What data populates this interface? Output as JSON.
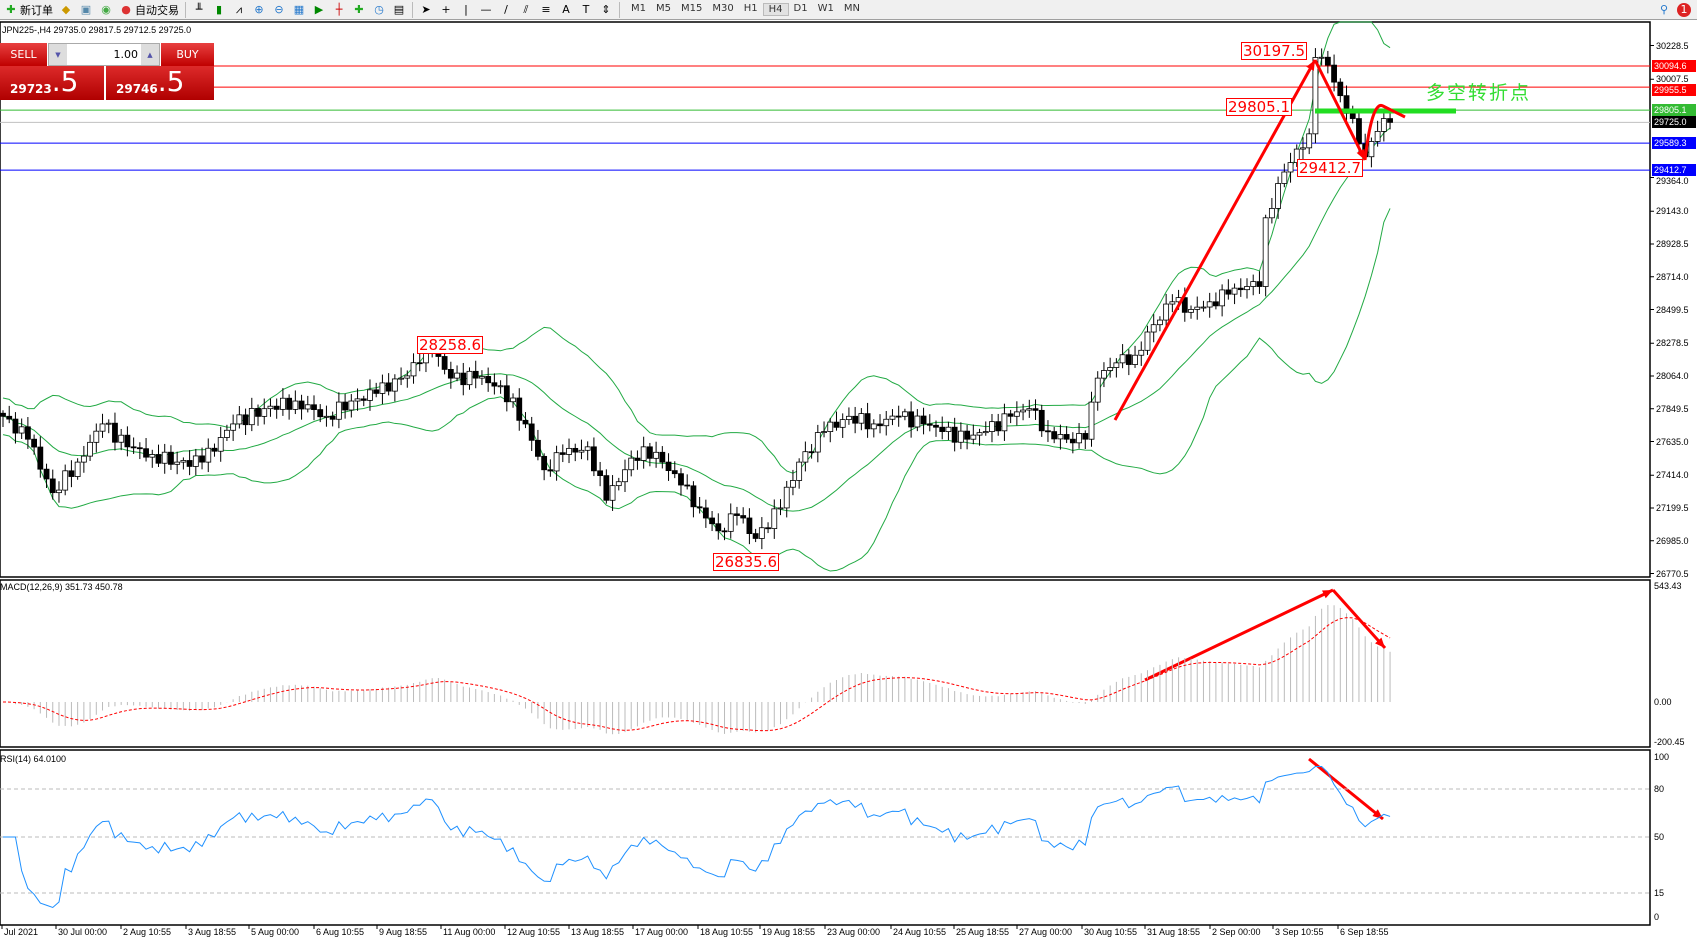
{
  "toolbar": {
    "new_order": "新订单",
    "auto_trading": "自动交易",
    "timeframes": [
      "M1",
      "M5",
      "M15",
      "M30",
      "H1",
      "H4",
      "D1",
      "W1",
      "MN"
    ],
    "active_timeframe": "H4",
    "notification_count": "1"
  },
  "chart": {
    "title": "JPN225-,H4  29735.0 29817.5 29712.5 29725.0"
  },
  "trade_panel": {
    "sell_label": "SELL",
    "buy_label": "BUY",
    "lots": "1.00",
    "sell_price_main": "29723",
    "sell_price_pip": ".5",
    "buy_price_main": "29746",
    "buy_price_pip": ".5"
  },
  "price_axis": {
    "ticks": [
      "30228.5",
      "30007.5",
      "29364.0",
      "29143.0",
      "28928.5",
      "28714.0",
      "28499.5",
      "28278.5",
      "28064.0",
      "27849.5",
      "27635.0",
      "27414.0",
      "27199.5",
      "26985.0",
      "26770.5"
    ]
  },
  "levels": [
    {
      "price": "30094.6",
      "color": "#ff0000"
    },
    {
      "price": "29955.5",
      "color": "#ff0000"
    },
    {
      "price": "29805.1",
      "color": "#33bb33"
    },
    {
      "price": "29725.0",
      "color": "#000000",
      "line": "#c0c0c0"
    },
    {
      "price": "29589.3",
      "color": "#0000ff"
    },
    {
      "price": "29412.7",
      "color": "#0000ff"
    }
  ],
  "price_labels": [
    "30197.5",
    "29805.1",
    "29412.7",
    "28258.6",
    "26835.6"
  ],
  "annotation_text": "多空转折点",
  "price_path": [
    [
      0,
      27800
    ],
    [
      4,
      27650
    ],
    [
      8,
      27300
    ],
    [
      12,
      27500
    ],
    [
      16,
      27750
    ],
    [
      20,
      27600
    ],
    [
      24,
      27550
    ],
    [
      28,
      27500
    ],
    [
      32,
      27500
    ],
    [
      37,
      27750
    ],
    [
      42,
      27850
    ],
    [
      47,
      27900
    ],
    [
      52,
      27800
    ],
    [
      56,
      27900
    ],
    [
      60,
      27950
    ],
    [
      64,
      28050
    ],
    [
      67,
      28150
    ],
    [
      69,
      28230
    ],
    [
      72,
      28050
    ],
    [
      76,
      28050
    ],
    [
      80,
      28000
    ],
    [
      84,
      27750
    ],
    [
      87,
      27450
    ],
    [
      90,
      27550
    ],
    [
      94,
      27600
    ],
    [
      97,
      27250
    ],
    [
      100,
      27450
    ],
    [
      103,
      27600
    ],
    [
      106,
      27500
    ],
    [
      109,
      27350
    ],
    [
      112,
      27200
    ],
    [
      115,
      27050
    ],
    [
      118,
      27150
    ],
    [
      121,
      27000
    ],
    [
      125,
      27200
    ],
    [
      128,
      27500
    ],
    [
      132,
      27700
    ],
    [
      136,
      27800
    ],
    [
      140,
      27750
    ],
    [
      144,
      27800
    ],
    [
      148,
      27750
    ],
    [
      151,
      27700
    ],
    [
      155,
      27650
    ],
    [
      158,
      27700
    ],
    [
      162,
      27800
    ],
    [
      165,
      27850
    ],
    [
      168,
      27700
    ],
    [
      171,
      27650
    ],
    [
      174,
      27650
    ],
    [
      176,
      28050
    ],
    [
      179,
      28150
    ],
    [
      182,
      28200
    ],
    [
      185,
      28400
    ],
    [
      188,
      28550
    ],
    [
      191,
      28500
    ],
    [
      194,
      28550
    ],
    [
      197,
      28600
    ],
    [
      200,
      28650
    ],
    [
      202,
      28650
    ],
    [
      203,
      29100
    ],
    [
      206,
      29400
    ],
    [
      208,
      29550
    ],
    [
      210,
      29650
    ],
    [
      211,
      30150
    ],
    [
      213,
      30100
    ],
    [
      215,
      29900
    ],
    [
      217,
      29750
    ],
    [
      219,
      29500
    ],
    [
      220,
      29600
    ],
    [
      222,
      29750
    ],
    [
      223,
      29725
    ]
  ],
  "macd": {
    "label": "MACD(12,26,9) 351.73 450.78",
    "ticks": [
      "543.43",
      "0.00",
      "-200.45"
    ]
  },
  "rsi": {
    "label": "RSI(14) 64.0100",
    "ticks": [
      "100",
      "80",
      "50",
      "15",
      "0"
    ]
  },
  "time_axis": [
    "Jul 2021",
    "30 Jul 00:00",
    "2 Aug 10:55",
    "3 Aug 18:55",
    "5 Aug 00:00",
    "6 Aug 10:55",
    "9 Aug 18:55",
    "11 Aug 00:00",
    "12 Aug 10:55",
    "13 Aug 18:55",
    "17 Aug 00:00",
    "18 Aug 10:55",
    "19 Aug 18:55",
    "23 Aug 00:00",
    "24 Aug 10:55",
    "25 Aug 18:55",
    "27 Aug 00:00",
    "30 Aug 10:55",
    "31 Aug 18:55",
    "2 Sep 00:00",
    "3 Sep 10:55",
    "6 Sep 18:55"
  ]
}
